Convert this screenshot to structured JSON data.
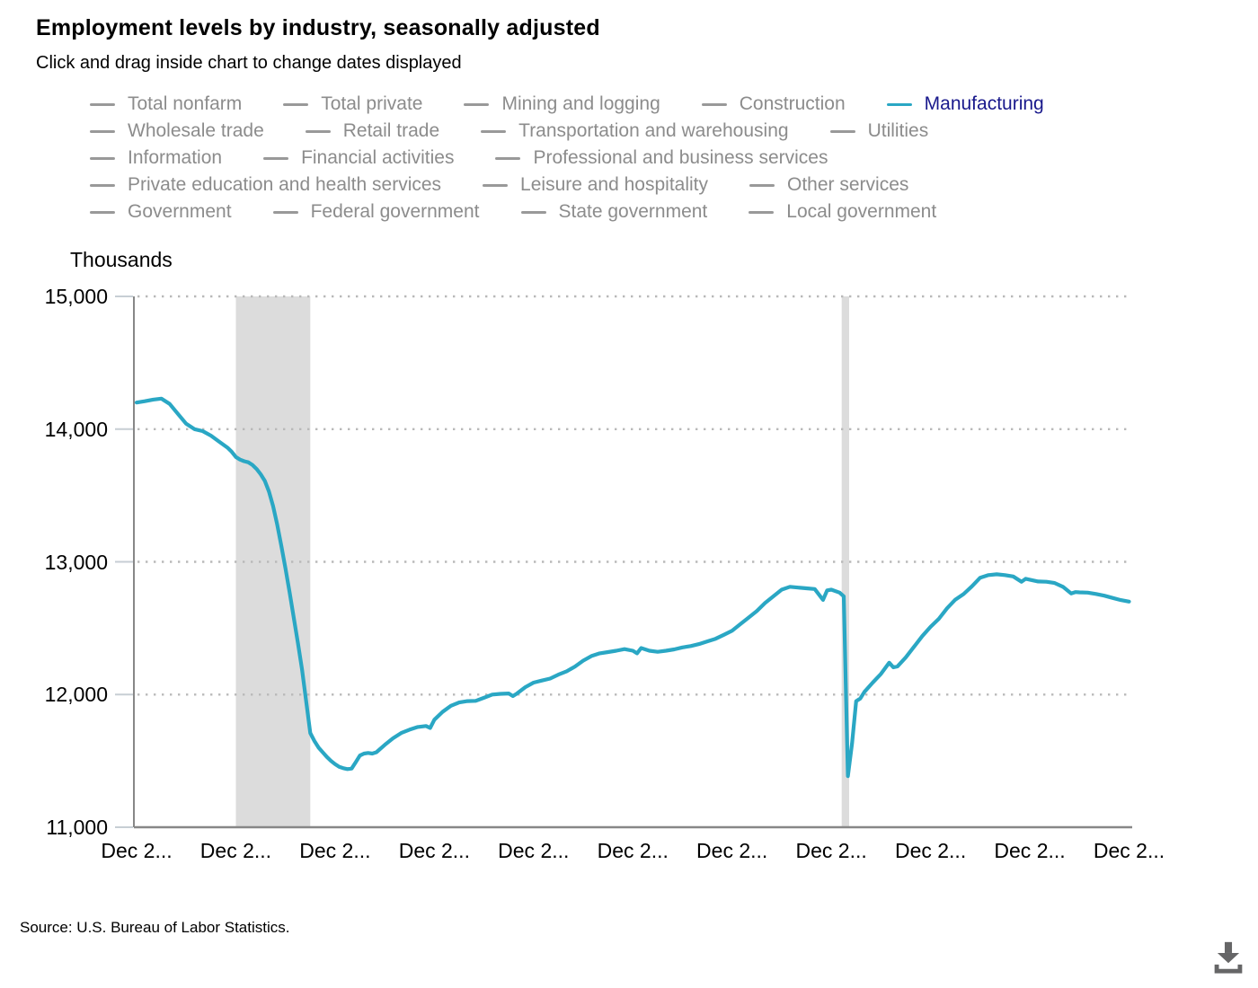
{
  "header": {
    "title": "Employment levels by industry, seasonally adjusted",
    "subtitle": "Click and drag inside chart to change dates displayed"
  },
  "legend": {
    "rows": [
      [
        {
          "label": "Total nonfarm",
          "active": false
        },
        {
          "label": "Total private",
          "active": false
        },
        {
          "label": "Mining and logging",
          "active": false
        },
        {
          "label": "Construction",
          "active": false
        },
        {
          "label": "Manufacturing",
          "active": true
        }
      ],
      [
        {
          "label": "Wholesale trade",
          "active": false
        },
        {
          "label": "Retail trade",
          "active": false
        },
        {
          "label": "Transportation and warehousing",
          "active": false
        },
        {
          "label": "Utilities",
          "active": false
        }
      ],
      [
        {
          "label": "Information",
          "active": false
        },
        {
          "label": "Financial activities",
          "active": false
        },
        {
          "label": "Professional and business services",
          "active": false
        }
      ],
      [
        {
          "label": "Private education and health services",
          "active": false
        },
        {
          "label": "Leisure and hospitality",
          "active": false
        },
        {
          "label": "Other services",
          "active": false
        }
      ],
      [
        {
          "label": "Government",
          "active": false
        },
        {
          "label": "Federal government",
          "active": false
        },
        {
          "label": "State government",
          "active": false
        },
        {
          "label": "Local government",
          "active": false
        }
      ]
    ]
  },
  "axis": {
    "y_title": "Thousands"
  },
  "source_text": "Source: U.S. Bureau of Labor Statistics.",
  "icons": {
    "download": "download-icon"
  },
  "colors": {
    "series_line": "#2aa7c4",
    "legend_active_label": "#19198c",
    "legend_inactive": "#8c8c8c",
    "legend_dash_inactive": "#999999",
    "recession_band": "#dcdcdc",
    "gridline": "#b9b9b9",
    "tick_stub": "#c7ced4",
    "axis_line": "#878787",
    "text": "#000000",
    "download_icon": "#666667"
  },
  "chart_data": {
    "type": "line",
    "title": "Employment levels by industry, seasonally adjusted",
    "ylabel": "Thousands",
    "ylim": [
      11000,
      15000
    ],
    "grid": "dotted horizontal gridlines",
    "legend_position": "top",
    "yticks": [
      {
        "label": "15,000",
        "value": 15000
      },
      {
        "label": "14,000",
        "value": 14000
      },
      {
        "label": "13,000",
        "value": 13000
      },
      {
        "label": "12,000",
        "value": 12000
      },
      {
        "label": "11,000",
        "value": 11000
      }
    ],
    "xticks": [
      "Dec 2...",
      "Dec 2...",
      "Dec 2...",
      "Dec 2...",
      "Dec 2...",
      "Dec 2...",
      "Dec 2...",
      "Dec 2...",
      "Dec 2...",
      "Dec 2...",
      "Dec 2..."
    ],
    "x_unit": "months since first point; one x tick every 24 months",
    "x_total_months": 240,
    "bands": [
      {
        "from_month": 24,
        "to_month": 42,
        "note": "recession shading"
      },
      {
        "from_month": 170.5,
        "to_month": 172.3,
        "note": "recession shading"
      }
    ],
    "series": [
      {
        "name": "Manufacturing",
        "color": "#2aa7c4",
        "points": [
          [
            0,
            14200
          ],
          [
            2,
            14210
          ],
          [
            4,
            14222
          ],
          [
            6,
            14230
          ],
          [
            8,
            14190
          ],
          [
            10,
            14115
          ],
          [
            12,
            14040
          ],
          [
            14,
            14000
          ],
          [
            16,
            13985
          ],
          [
            18,
            13950
          ],
          [
            20,
            13905
          ],
          [
            22,
            13860
          ],
          [
            23,
            13830
          ],
          [
            24,
            13790
          ],
          [
            25,
            13770
          ],
          [
            26,
            13758
          ],
          [
            27,
            13750
          ],
          [
            28,
            13730
          ],
          [
            29,
            13700
          ],
          [
            30,
            13660
          ],
          [
            31,
            13610
          ],
          [
            32,
            13530
          ],
          [
            33,
            13420
          ],
          [
            34,
            13280
          ],
          [
            35,
            13120
          ],
          [
            36,
            12950
          ],
          [
            37,
            12770
          ],
          [
            38,
            12580
          ],
          [
            39,
            12390
          ],
          [
            40,
            12190
          ],
          [
            41,
            11950
          ],
          [
            42,
            11710
          ],
          [
            43,
            11650
          ],
          [
            44,
            11600
          ],
          [
            45,
            11565
          ],
          [
            46,
            11530
          ],
          [
            47,
            11500
          ],
          [
            48,
            11475
          ],
          [
            49,
            11455
          ],
          [
            50,
            11445
          ],
          [
            51,
            11438
          ],
          [
            52,
            11442
          ],
          [
            53,
            11490
          ],
          [
            54,
            11540
          ],
          [
            55,
            11555
          ],
          [
            56,
            11560
          ],
          [
            57,
            11555
          ],
          [
            58,
            11565
          ],
          [
            60,
            11620
          ],
          [
            62,
            11670
          ],
          [
            64,
            11710
          ],
          [
            66,
            11735
          ],
          [
            68,
            11755
          ],
          [
            70,
            11763
          ],
          [
            71,
            11748
          ],
          [
            72,
            11810
          ],
          [
            74,
            11870
          ],
          [
            76,
            11915
          ],
          [
            78,
            11940
          ],
          [
            80,
            11950
          ],
          [
            82,
            11952
          ],
          [
            84,
            11975
          ],
          [
            86,
            12000
          ],
          [
            88,
            12005
          ],
          [
            90,
            12008
          ],
          [
            91,
            11988
          ],
          [
            92,
            12008
          ],
          [
            94,
            12055
          ],
          [
            96,
            12090
          ],
          [
            98,
            12105
          ],
          [
            100,
            12120
          ],
          [
            102,
            12150
          ],
          [
            104,
            12175
          ],
          [
            106,
            12210
          ],
          [
            108,
            12255
          ],
          [
            110,
            12290
          ],
          [
            112,
            12310
          ],
          [
            114,
            12320
          ],
          [
            116,
            12330
          ],
          [
            118,
            12342
          ],
          [
            120,
            12330
          ],
          [
            121,
            12310
          ],
          [
            122,
            12350
          ],
          [
            124,
            12330
          ],
          [
            126,
            12322
          ],
          [
            128,
            12330
          ],
          [
            130,
            12340
          ],
          [
            132,
            12355
          ],
          [
            134,
            12365
          ],
          [
            136,
            12380
          ],
          [
            138,
            12400
          ],
          [
            140,
            12420
          ],
          [
            142,
            12450
          ],
          [
            144,
            12480
          ],
          [
            146,
            12530
          ],
          [
            148,
            12580
          ],
          [
            150,
            12630
          ],
          [
            152,
            12690
          ],
          [
            154,
            12740
          ],
          [
            156,
            12790
          ],
          [
            158,
            12812
          ],
          [
            160,
            12806
          ],
          [
            162,
            12800
          ],
          [
            164,
            12795
          ],
          [
            166,
            12713
          ],
          [
            167,
            12785
          ],
          [
            168,
            12790
          ],
          [
            170,
            12768
          ],
          [
            171,
            12740
          ],
          [
            172,
            11385
          ],
          [
            173,
            11630
          ],
          [
            174,
            11950
          ],
          [
            175,
            11970
          ],
          [
            176,
            12020
          ],
          [
            178,
            12090
          ],
          [
            180,
            12155
          ],
          [
            182,
            12240
          ],
          [
            183,
            12205
          ],
          [
            184,
            12212
          ],
          [
            186,
            12280
          ],
          [
            188,
            12360
          ],
          [
            190,
            12440
          ],
          [
            192,
            12510
          ],
          [
            194,
            12570
          ],
          [
            196,
            12650
          ],
          [
            198,
            12715
          ],
          [
            200,
            12757
          ],
          [
            202,
            12815
          ],
          [
            204,
            12880
          ],
          [
            206,
            12900
          ],
          [
            208,
            12906
          ],
          [
            210,
            12900
          ],
          [
            212,
            12890
          ],
          [
            214,
            12850
          ],
          [
            215,
            12872
          ],
          [
            216,
            12865
          ],
          [
            218,
            12852
          ],
          [
            220,
            12850
          ],
          [
            222,
            12840
          ],
          [
            224,
            12812
          ],
          [
            226,
            12762
          ],
          [
            227,
            12772
          ],
          [
            228,
            12770
          ],
          [
            230,
            12768
          ],
          [
            232,
            12758
          ],
          [
            234,
            12745
          ],
          [
            236,
            12728
          ],
          [
            238,
            12712
          ],
          [
            240,
            12700
          ]
        ]
      }
    ]
  }
}
